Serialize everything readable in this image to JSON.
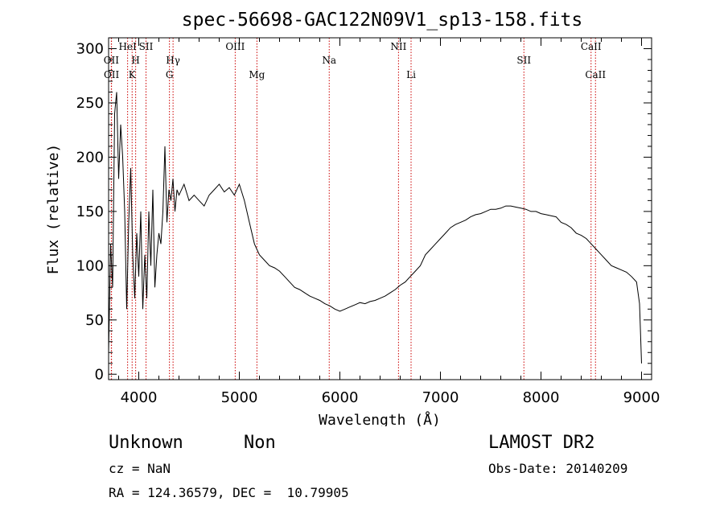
{
  "chart_data": {
    "type": "line",
    "title": "spec-56698-GAC122N09V1_sp13-158.fits",
    "xlabel": "Wavelength (Å)",
    "ylabel": "Flux (relative)",
    "xlim": [
      3700,
      9100
    ],
    "ylim": [
      -5,
      310
    ],
    "xticks": [
      4000,
      5000,
      6000,
      7000,
      8000,
      9000
    ],
    "yticks": [
      0,
      50,
      100,
      150,
      200,
      250,
      300
    ],
    "grid": false,
    "series": [
      {
        "x": [
          3700,
          3720,
          3740,
          3760,
          3780,
          3800,
          3820,
          3840,
          3860,
          3880,
          3900,
          3920,
          3940,
          3960,
          3980,
          4000,
          4020,
          4040,
          4060,
          4080,
          4100,
          4120,
          4140,
          4160,
          4180,
          4200,
          4220,
          4240,
          4260,
          4280,
          4300,
          4320,
          4340,
          4360,
          4380,
          4400,
          4450,
          4500,
          4550,
          4600,
          4650,
          4700,
          4750,
          4800,
          4850,
          4900,
          4950,
          5000,
          5050,
          5100,
          5150,
          5200,
          5250,
          5300,
          5350,
          5400,
          5450,
          5500,
          5550,
          5600,
          5650,
          5700,
          5750,
          5800,
          5850,
          5900,
          5950,
          6000,
          6050,
          6100,
          6150,
          6200,
          6250,
          6300,
          6350,
          6400,
          6450,
          6500,
          6550,
          6600,
          6650,
          6700,
          6750,
          6800,
          6850,
          6900,
          6950,
          7000,
          7050,
          7100,
          7150,
          7200,
          7250,
          7300,
          7350,
          7400,
          7450,
          7500,
          7550,
          7600,
          7650,
          7700,
          7750,
          7800,
          7850,
          7900,
          7950,
          8000,
          8050,
          8100,
          8150,
          8200,
          8250,
          8300,
          8350,
          8400,
          8450,
          8500,
          8550,
          8600,
          8650,
          8700,
          8750,
          8800,
          8850,
          8900,
          8950,
          8980,
          9000
        ],
        "y": [
          20,
          120,
          80,
          240,
          260,
          180,
          230,
          200,
          150,
          60,
          140,
          190,
          110,
          70,
          130,
          90,
          150,
          60,
          110,
          70,
          150,
          100,
          170,
          80,
          110,
          130,
          120,
          150,
          210,
          140,
          170,
          160,
          180,
          150,
          170,
          165,
          175,
          160,
          165,
          160,
          155,
          165,
          170,
          175,
          168,
          172,
          165,
          175,
          160,
          140,
          120,
          110,
          105,
          100,
          98,
          95,
          90,
          85,
          80,
          78,
          75,
          72,
          70,
          68,
          65,
          63,
          60,
          58,
          60,
          62,
          64,
          66,
          65,
          67,
          68,
          70,
          72,
          75,
          78,
          82,
          85,
          90,
          95,
          100,
          110,
          115,
          120,
          125,
          130,
          135,
          138,
          140,
          142,
          145,
          147,
          148,
          150,
          152,
          152,
          153,
          155,
          155,
          154,
          153,
          152,
          150,
          150,
          148,
          147,
          146,
          145,
          140,
          138,
          135,
          130,
          128,
          125,
          120,
          115,
          110,
          105,
          100,
          98,
          96,
          94,
          90,
          85,
          65,
          10
        ]
      }
    ],
    "annotations": [
      {
        "label": "OII",
        "x": 3727,
        "row": 2
      },
      {
        "label": "OII",
        "x": 3729,
        "row": 3
      },
      {
        "label": "HeI",
        "x": 3889,
        "row": 1
      },
      {
        "label": "H",
        "x": 3969,
        "row": 2
      },
      {
        "label": "K",
        "x": 3934,
        "row": 3
      },
      {
        "label": "SII",
        "x": 4072,
        "row": 1
      },
      {
        "label": "Hγ",
        "x": 4341,
        "row": 2
      },
      {
        "label": "G",
        "x": 4305,
        "row": 3
      },
      {
        "label": "OIII",
        "x": 4959,
        "row": 1
      },
      {
        "label": "Mg",
        "x": 5175,
        "row": 3
      },
      {
        "label": "Na",
        "x": 5894,
        "row": 2
      },
      {
        "label": "NII",
        "x": 6583,
        "row": 1
      },
      {
        "label": "Li",
        "x": 6708,
        "row": 3
      },
      {
        "label": "SII",
        "x": 7830,
        "row": 2
      },
      {
        "label": "CaII",
        "x": 8498,
        "row": 1
      },
      {
        "label": "CaII",
        "x": 8542,
        "row": 3
      }
    ],
    "line_color": "#000000",
    "marker_line_color": "#cc0000"
  },
  "info": {
    "class_name": "Unknown",
    "subclass": "Non",
    "survey": "LAMOST DR2",
    "redshift": "cz = NaN",
    "obs_date": "Obs-Date: 20140209",
    "coords": "RA = 124.36579, DEC =  10.79905"
  }
}
